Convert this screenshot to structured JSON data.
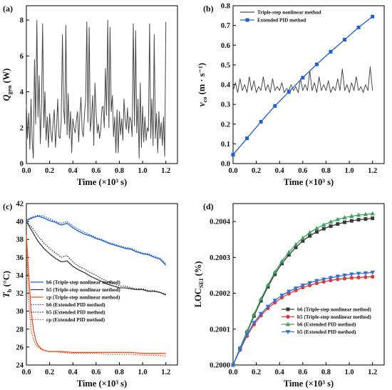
{
  "chart_data": [
    {
      "panel": "(a)",
      "type": "line",
      "xlabel": "Time (×10³ s)",
      "ylabel_main": "Q",
      "ylabel_sub": "gen",
      "ylabel_unit": " (W)",
      "xlim": [
        0,
        1.3
      ],
      "ylim": [
        0,
        8.8
      ],
      "xticks": [
        "0.0",
        "0.2",
        "0.4",
        "0.6",
        "0.8",
        "1.0",
        "1.2"
      ],
      "yticks": [
        "0",
        "2",
        "4",
        "6",
        "8"
      ],
      "series": [
        {
          "color": "#4a4a4a",
          "x": [
            0.0,
            0.01,
            0.02,
            0.03,
            0.04,
            0.05,
            0.06,
            0.07,
            0.08,
            0.09,
            0.1,
            0.11,
            0.12,
            0.13,
            0.14,
            0.15,
            0.16,
            0.17,
            0.18,
            0.19,
            0.2,
            0.21,
            0.22,
            0.23,
            0.24,
            0.25,
            0.26,
            0.27,
            0.28,
            0.29,
            0.3,
            0.31,
            0.32,
            0.33,
            0.34,
            0.35,
            0.36,
            0.37,
            0.38,
            0.39,
            0.4,
            0.41,
            0.42,
            0.43,
            0.44,
            0.45,
            0.46,
            0.47,
            0.48,
            0.49,
            0.5,
            0.51,
            0.52,
            0.53,
            0.54,
            0.55,
            0.56,
            0.57,
            0.58,
            0.59,
            0.6,
            0.61,
            0.62,
            0.63,
            0.64,
            0.65,
            0.66,
            0.67,
            0.68,
            0.69,
            0.7,
            0.71,
            0.72,
            0.73,
            0.74,
            0.75,
            0.76,
            0.77,
            0.78,
            0.79,
            0.8,
            0.81,
            0.82,
            0.83,
            0.84,
            0.85,
            0.86,
            0.87,
            0.88,
            0.89,
            0.9,
            0.91,
            0.92,
            0.93,
            0.94,
            0.95,
            0.96,
            0.97,
            0.98,
            0.99,
            1.0,
            1.01,
            1.02,
            1.03,
            1.04,
            1.05,
            1.06,
            1.07,
            1.08,
            1.09,
            1.1,
            1.11,
            1.12,
            1.13,
            1.14,
            1.15,
            1.16,
            1.17,
            1.18,
            1.19,
            1.2
          ],
          "y": [
            3.3,
            1.4,
            2.8,
            0.8,
            3.6,
            1.2,
            0.3,
            5.8,
            2.2,
            8.0,
            2.6,
            4.9,
            1.1,
            3.2,
            7.8,
            2.0,
            4.0,
            1.3,
            2.6,
            0.9,
            2.8,
            1.8,
            1.2,
            2.3,
            3.0,
            0.9,
            2.0,
            3.6,
            1.5,
            1.4,
            2.4,
            7.2,
            3.1,
            2.2,
            7.7,
            1.6,
            3.9,
            1.4,
            2.9,
            0.6,
            2.5,
            2.0,
            1.7,
            2.4,
            2.9,
            1.2,
            2.7,
            3.7,
            1.8,
            1.5,
            2.7,
            3.6,
            7.9,
            2.3,
            7.6,
            1.8,
            2.5,
            3.8,
            1.0,
            4.5,
            2.9,
            1.7,
            2.2,
            1.4,
            1.9,
            3.1,
            3.2,
            2.0,
            5.3,
            2.7,
            8.0,
            2.0,
            7.6,
            2.9,
            3.8,
            1.5,
            2.6,
            0.6,
            3.0,
            0.6,
            2.9,
            1.6,
            2.5,
            1.3,
            3.6,
            2.5,
            1.9,
            3.1,
            1.7,
            2.6,
            2.4,
            1.5,
            7.8,
            2.1,
            7.4,
            1.7,
            3.6,
            0.3,
            4.5,
            0.9,
            3.2,
            1.2,
            2.6,
            1.3,
            2.0,
            1.8,
            7.8,
            1.4,
            3.6,
            1.0,
            7.2,
            1.4,
            2.8,
            0.6,
            2.9,
            1.4,
            2.3,
            1.0,
            2.6,
            0.4,
            7.9
          ]
        }
      ]
    },
    {
      "panel": "(b)",
      "type": "line",
      "xlabel": "Time (×10³ s)",
      "ylabel_main": "v",
      "ylabel_sub": "co",
      "ylabel_unit": " (m · s⁻¹)",
      "xlim": [
        0,
        1.3
      ],
      "ylim": [
        0,
        0.8
      ],
      "xticks": [
        "0.0",
        "0.2",
        "0.4",
        "0.6",
        "0.8",
        "1.0",
        "1.2"
      ],
      "yticks": [
        "0.0",
        "0.1",
        "0.2",
        "0.3",
        "0.4",
        "0.5",
        "0.6",
        "0.7",
        "0.8"
      ],
      "series": [
        {
          "name": "Triple-step nonlinear method",
          "color": "#4a4a4a",
          "x": [
            0.0,
            0.02,
            0.04,
            0.06,
            0.08,
            0.1,
            0.12,
            0.14,
            0.16,
            0.18,
            0.2,
            0.22,
            0.24,
            0.26,
            0.28,
            0.3,
            0.32,
            0.34,
            0.36,
            0.38,
            0.4,
            0.42,
            0.44,
            0.46,
            0.48,
            0.5,
            0.52,
            0.54,
            0.56,
            0.58,
            0.6,
            0.62,
            0.64,
            0.66,
            0.68,
            0.7,
            0.72,
            0.74,
            0.76,
            0.78,
            0.8,
            0.82,
            0.84,
            0.86,
            0.88,
            0.9,
            0.92,
            0.94,
            0.96,
            0.98,
            1.0,
            1.02,
            1.04,
            1.06,
            1.08,
            1.1,
            1.12,
            1.14,
            1.16,
            1.18,
            1.2
          ],
          "y": [
            0.37,
            0.41,
            0.36,
            0.43,
            0.37,
            0.4,
            0.36,
            0.44,
            0.37,
            0.42,
            0.36,
            0.39,
            0.37,
            0.44,
            0.37,
            0.4,
            0.36,
            0.43,
            0.37,
            0.39,
            0.37,
            0.41,
            0.36,
            0.38,
            0.37,
            0.4,
            0.37,
            0.39,
            0.36,
            0.43,
            0.37,
            0.4,
            0.37,
            0.47,
            0.37,
            0.41,
            0.36,
            0.44,
            0.37,
            0.4,
            0.37,
            0.42,
            0.36,
            0.39,
            0.37,
            0.43,
            0.37,
            0.48,
            0.37,
            0.4,
            0.36,
            0.41,
            0.37,
            0.44,
            0.37,
            0.39,
            0.36,
            0.4,
            0.37,
            0.49,
            0.37
          ]
        },
        {
          "name": "Extended PID method",
          "color": "#1f5fd6",
          "marker": "square",
          "x": [
            0.0,
            0.12,
            0.24,
            0.36,
            0.48,
            0.6,
            0.72,
            0.84,
            0.96,
            1.08,
            1.2
          ],
          "y": [
            0.045,
            0.128,
            0.212,
            0.292,
            0.363,
            0.435,
            0.503,
            0.567,
            0.628,
            0.69,
            0.745
          ]
        }
      ],
      "legend": "top-left"
    },
    {
      "panel": "(c)",
      "type": "line",
      "xlabel": "Time (×10³ s)",
      "ylabel_main": "T",
      "ylabel_sub": "b",
      "ylabel_unit": " (°C)",
      "xlim": [
        0,
        1.3
      ],
      "ylim": [
        24,
        42
      ],
      "xticks": [
        "0.0",
        "0.2",
        "0.4",
        "0.6",
        "0.8",
        "1.0",
        "1.2"
      ],
      "yticks": [
        "24",
        "26",
        "28",
        "30",
        "32",
        "34",
        "36",
        "38",
        "40",
        "42"
      ],
      "series": [
        {
          "name": "b6 (Triple-step nonlinear method)",
          "color": "#1f5fd6",
          "dash": "solid",
          "x": [
            0.0,
            0.05,
            0.1,
            0.15,
            0.2,
            0.25,
            0.3,
            0.35,
            0.4,
            0.45,
            0.5,
            0.55,
            0.6,
            0.65,
            0.7,
            0.75,
            0.8,
            0.85,
            0.9,
            0.95,
            1.0,
            1.05,
            1.1,
            1.15,
            1.2
          ],
          "y": [
            40.1,
            40.4,
            40.6,
            40.4,
            40.1,
            39.9,
            39.6,
            39.8,
            39.3,
            38.9,
            38.6,
            38.4,
            38.1,
            37.9,
            37.6,
            37.4,
            37.2,
            37.0,
            36.9,
            36.6,
            36.4,
            36.3,
            36.0,
            35.8,
            35.1
          ]
        },
        {
          "name": "b5 (Triple-step nonlinear method)",
          "color": "#3a3a3a",
          "dash": "solid",
          "x": [
            0.0,
            0.05,
            0.1,
            0.15,
            0.2,
            0.25,
            0.3,
            0.35,
            0.4,
            0.45,
            0.5,
            0.55,
            0.6,
            0.65,
            0.7,
            0.75,
            0.8,
            0.85,
            0.9,
            0.95,
            1.0,
            1.05,
            1.1,
            1.15,
            1.2
          ],
          "y": [
            40.0,
            38.9,
            37.8,
            37.0,
            36.4,
            35.9,
            35.5,
            35.6,
            35.0,
            34.6,
            34.3,
            33.9,
            33.6,
            33.3,
            33.0,
            32.8,
            32.6,
            32.6,
            32.5,
            32.4,
            32.4,
            32.2,
            32.2,
            32.1,
            31.8
          ]
        },
        {
          "name": "cp (Triple-step nonlinear method)",
          "color": "#f0501f",
          "dash": "solid",
          "x": [
            0.0,
            0.02,
            0.04,
            0.06,
            0.08,
            0.1,
            0.13,
            0.16,
            0.2,
            0.25,
            0.3,
            0.4,
            0.5,
            0.6,
            0.7,
            0.8,
            0.9,
            1.0,
            1.1,
            1.2
          ],
          "y": [
            38.5,
            34.0,
            30.2,
            28.0,
            26.8,
            26.2,
            25.8,
            25.6,
            25.5,
            25.5,
            25.5,
            25.4,
            25.4,
            25.4,
            25.4,
            25.4,
            25.4,
            25.3,
            25.3,
            25.3
          ]
        },
        {
          "name": "b6 (Extended PID method)",
          "color": "#1f5fd6",
          "dash": "dotted",
          "x": [
            0.0,
            0.05,
            0.1,
            0.15,
            0.2,
            0.25,
            0.3,
            0.35,
            0.4,
            0.45,
            0.5,
            0.55,
            0.6,
            0.65,
            0.7,
            0.75,
            0.8,
            0.85,
            0.9,
            0.95,
            1.0,
            1.05,
            1.1,
            1.15,
            1.2
          ],
          "y": [
            40.2,
            40.5,
            40.7,
            40.6,
            40.3,
            40.0,
            39.8,
            40.0,
            39.5,
            39.1,
            38.8,
            38.5,
            38.2,
            38.0,
            37.7,
            37.5,
            37.3,
            37.1,
            37.0,
            36.7,
            36.5,
            36.4,
            36.1,
            35.9,
            35.3
          ]
        },
        {
          "name": "b5 (Extended PID method)",
          "color": "#3a3a3a",
          "dash": "dotted",
          "x": [
            0.0,
            0.05,
            0.1,
            0.15,
            0.2,
            0.25,
            0.3,
            0.35,
            0.4,
            0.45,
            0.5,
            0.55,
            0.6,
            0.65,
            0.7,
            0.75,
            0.8,
            0.85,
            0.9,
            0.95,
            1.0,
            1.05,
            1.1,
            1.15,
            1.2
          ],
          "y": [
            40.0,
            39.3,
            38.4,
            37.6,
            37.0,
            36.5,
            36.0,
            36.2,
            35.5,
            35.0,
            34.7,
            34.3,
            34.0,
            33.6,
            33.3,
            33.1,
            32.8,
            32.8,
            32.6,
            32.5,
            32.5,
            32.3,
            32.3,
            32.1,
            31.9
          ]
        },
        {
          "name": "cp (Extended PID method)",
          "color": "#f0501f",
          "dash": "dotted",
          "x": [
            0.0,
            0.02,
            0.04,
            0.06,
            0.08,
            0.1,
            0.13,
            0.16,
            0.2,
            0.25,
            0.3,
            0.4,
            0.5,
            0.6,
            0.7,
            0.8,
            0.9,
            1.0,
            1.1,
            1.2
          ],
          "y": [
            37.5,
            31.0,
            28.0,
            26.8,
            26.3,
            26.0,
            25.7,
            25.6,
            25.5,
            25.5,
            25.4,
            25.3,
            25.3,
            25.3,
            25.2,
            25.2,
            25.2,
            25.1,
            25.1,
            25.0
          ]
        }
      ],
      "legend": "bottom-left"
    },
    {
      "panel": "(d)",
      "type": "line",
      "xlabel": "Time (×10³ s)",
      "ylabel_main": "LOC",
      "ylabel_sub": "SEI",
      "ylabel_unit": " (%)",
      "xlim": [
        0,
        1.3
      ],
      "ylim": [
        0.2,
        0.20045
      ],
      "xticks": [
        "0.0",
        "0.2",
        "0.4",
        "0.6",
        "0.8",
        "1.0",
        "1.2"
      ],
      "yticks": [
        "0.2000",
        "0.2001",
        "0.2002",
        "0.2003",
        "0.2004"
      ],
      "series": [
        {
          "name": "b6 (Triple-step nonlinear method)",
          "color": "#3a3a3a",
          "marker": "square",
          "x": [
            0.0,
            0.06,
            0.12,
            0.18,
            0.24,
            0.3,
            0.36,
            0.42,
            0.48,
            0.54,
            0.6,
            0.66,
            0.72,
            0.78,
            0.84,
            0.9,
            0.96,
            1.02,
            1.08,
            1.14,
            1.2
          ],
          "y": [
            0.2,
            0.200046,
            0.200091,
            0.200137,
            0.200179,
            0.200218,
            0.200253,
            0.200283,
            0.200307,
            0.200328,
            0.200346,
            0.20036,
            0.200371,
            0.20038,
            0.200387,
            0.200393,
            0.200398,
            0.200402,
            0.200405,
            0.200407,
            0.200409
          ]
        },
        {
          "name": "b5 (Triple-step nonlinear method)",
          "color": "#e23a3a",
          "marker": "circle",
          "x": [
            0.0,
            0.06,
            0.12,
            0.18,
            0.24,
            0.3,
            0.36,
            0.42,
            0.48,
            0.54,
            0.6,
            0.66,
            0.72,
            0.78,
            0.84,
            0.9,
            0.96,
            1.02,
            1.08,
            1.14,
            1.2
          ],
          "y": [
            0.2,
            0.200042,
            0.200081,
            0.200113,
            0.200138,
            0.200158,
            0.200174,
            0.200188,
            0.200199,
            0.200208,
            0.200216,
            0.200222,
            0.200228,
            0.200232,
            0.200236,
            0.200239,
            0.200241,
            0.200243,
            0.200244,
            0.200245,
            0.200246
          ]
        },
        {
          "name": "b6 (Extended PID method)",
          "color": "#3aa55a",
          "marker": "triangle-up",
          "x": [
            0.0,
            0.06,
            0.12,
            0.18,
            0.24,
            0.3,
            0.36,
            0.42,
            0.48,
            0.54,
            0.6,
            0.66,
            0.72,
            0.78,
            0.84,
            0.9,
            0.96,
            1.02,
            1.08,
            1.14,
            1.2
          ],
          "y": [
            0.2,
            0.200048,
            0.200094,
            0.200141,
            0.200184,
            0.200223,
            0.200259,
            0.200289,
            0.200314,
            0.200336,
            0.200354,
            0.200369,
            0.200381,
            0.200391,
            0.200399,
            0.200406,
            0.200411,
            0.200415,
            0.200418,
            0.20042,
            0.200422
          ]
        },
        {
          "name": "b5 (Extended PID method)",
          "color": "#2f6fe0",
          "marker": "triangle-down",
          "x": [
            0.0,
            0.06,
            0.12,
            0.18,
            0.24,
            0.3,
            0.36,
            0.42,
            0.48,
            0.54,
            0.6,
            0.66,
            0.72,
            0.78,
            0.84,
            0.9,
            0.96,
            1.02,
            1.08,
            1.14,
            1.2
          ],
          "y": [
            0.2,
            0.200044,
            0.200085,
            0.200118,
            0.200143,
            0.200163,
            0.20018,
            0.200194,
            0.200205,
            0.200214,
            0.200222,
            0.200229,
            0.200235,
            0.200239,
            0.200243,
            0.200247,
            0.20025,
            0.200253,
            0.200255,
            0.200256,
            0.200258
          ]
        }
      ],
      "legend": "bottom-right"
    }
  ]
}
